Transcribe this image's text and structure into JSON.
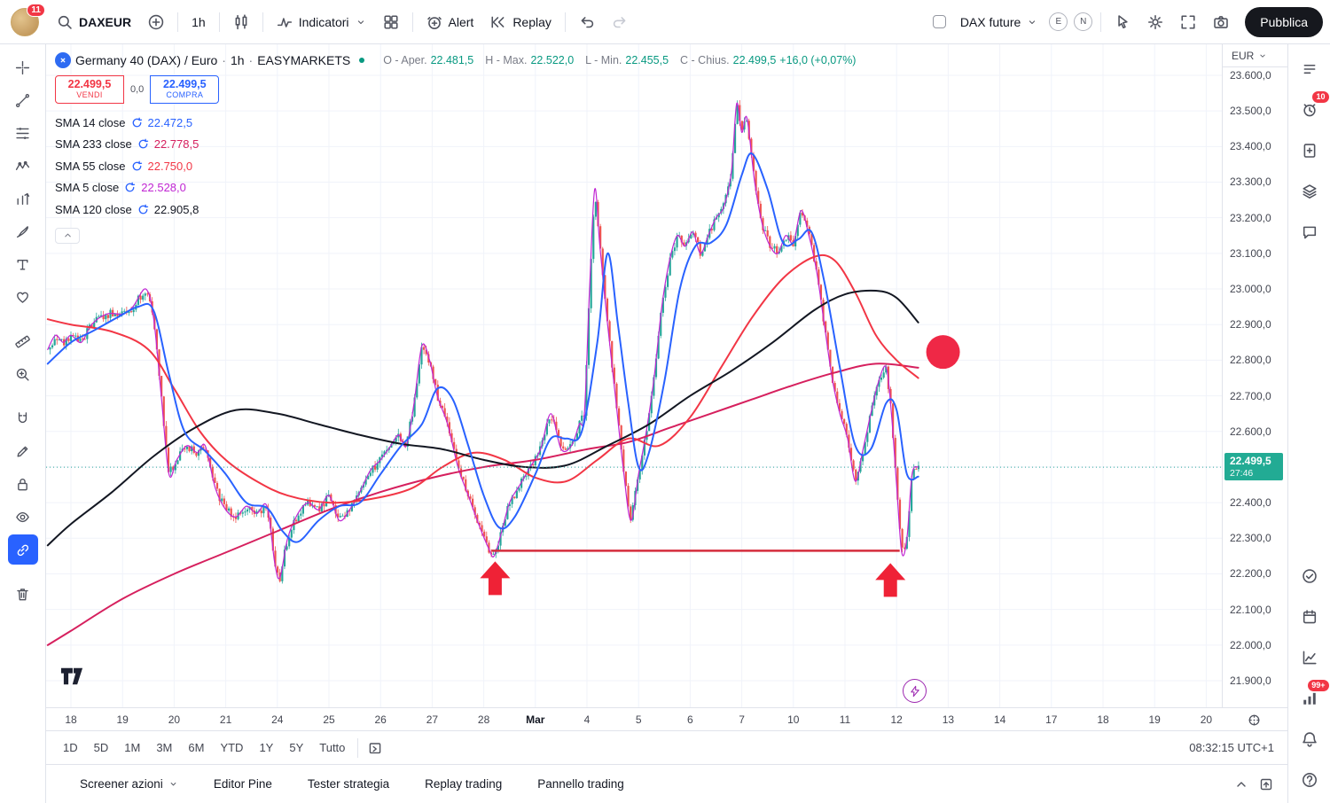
{
  "topbar": {
    "badge": "11",
    "symbol_search": "DAXEUR",
    "interval": "1h",
    "indicators_label": "Indicatori",
    "alert_label": "Alert",
    "replay_label": "Replay",
    "account_select": "DAX future",
    "badge_e": "E",
    "badge_n": "N",
    "publish_label": "Pubblica"
  },
  "legend": {
    "title": "Germany 40 (DAX) / Euro",
    "sep": "·",
    "interval": "1h",
    "exchange": "EASYMARKETS",
    "ohlc": [
      {
        "label": "O - Aper.",
        "value": "22.481,5"
      },
      {
        "label": "H - Max.",
        "value": "22.522,0"
      },
      {
        "label": "L - Min.",
        "value": "22.455,5"
      },
      {
        "label": "C - Chius.",
        "value": "22.499,5"
      }
    ],
    "change": "+16,0 (+0,07%)",
    "sell_price": "22.499,5",
    "sell_label": "VENDI",
    "spread": "0,0",
    "buy_price": "22.499,5",
    "buy_label": "COMPRA",
    "indicators": [
      {
        "name": "SMA 14 close",
        "value": "22.472,5",
        "color": "#2962ff"
      },
      {
        "name": "SMA 233 close",
        "value": "22.778,5",
        "color": "#d6205e"
      },
      {
        "name": "SMA 55 close",
        "value": "22.750,0",
        "color": "#f23645"
      },
      {
        "name": "SMA 5 close",
        "value": "22.528,0",
        "color": "#c026d3"
      },
      {
        "name": "SMA 120 close",
        "value": "22.905,8",
        "color": "#131722"
      }
    ]
  },
  "left_toolbar": {
    "tools": [
      {
        "icon": "crosshair"
      },
      {
        "icon": "trend-line"
      },
      {
        "icon": "fib"
      },
      {
        "icon": "pattern"
      },
      {
        "icon": "forecast"
      },
      {
        "icon": "brush"
      },
      {
        "icon": "text"
      },
      {
        "icon": "emoji"
      },
      {
        "icon": "ruler",
        "gap": true
      },
      {
        "icon": "zoom"
      },
      {
        "icon": "magnet",
        "gap": true
      },
      {
        "icon": "edit"
      },
      {
        "icon": "lock"
      },
      {
        "icon": "eye"
      },
      {
        "icon": "link",
        "active": true
      },
      {
        "icon": "trash",
        "gap": true
      }
    ]
  },
  "right_toolbar": {
    "top": [
      {
        "icon": "watchlist"
      },
      {
        "icon": "alarm",
        "badge": "10"
      },
      {
        "icon": "doc-plus"
      },
      {
        "icon": "layers"
      },
      {
        "icon": "chat"
      }
    ],
    "bottom": [
      {
        "icon": "circle-check"
      },
      {
        "icon": "calendar"
      },
      {
        "icon": "chart-axes"
      },
      {
        "icon": "signal",
        "badge": "99+"
      },
      {
        "icon": "bell"
      },
      {
        "icon": "question"
      }
    ]
  },
  "price_axis": {
    "currency": "EUR",
    "labels": [
      "23.600,0",
      "23.500,0",
      "23.400,0",
      "23.300,0",
      "23.200,0",
      "23.100,0",
      "23.000,0",
      "22.900,0",
      "22.800,0",
      "22.700,0",
      "22.600,0",
      "22.500,0",
      "22.400,0",
      "22.300,0",
      "22.200,0",
      "22.100,0",
      "22.000,0",
      "21.900,0"
    ]
  },
  "time_axis": {
    "labels": [
      "18",
      "19",
      "20",
      "21",
      "24",
      "25",
      "26",
      "27",
      "28",
      "Mar",
      "4",
      "5",
      "6",
      "7",
      "10",
      "11",
      "12",
      "13",
      "14",
      "17",
      "18",
      "19",
      "20"
    ],
    "bold_label": "Mar"
  },
  "range_bar": {
    "ranges": [
      "1D",
      "5D",
      "1M",
      "3M",
      "6M",
      "YTD",
      "1Y",
      "5Y",
      "Tutto"
    ],
    "clock": "08:32:15 UTC+1"
  },
  "footer": {
    "tabs": [
      "Screener azioni",
      "Editor Pine",
      "Tester strategia",
      "Replay trading",
      "Pannello trading"
    ]
  },
  "chart_data": {
    "type": "candlestick",
    "symbol": "Germany 40 (DAX) / Euro",
    "interval": "1h",
    "up_color": "#26a69a",
    "down_color": "#ef5350",
    "grid_color": "#f0f3fa",
    "y_min": 21900,
    "y_max": 23600,
    "y_step": 100,
    "x_labels": [
      "18",
      "19",
      "20",
      "21",
      "24",
      "25",
      "26",
      "27",
      "28",
      "Mar",
      "4",
      "5",
      "6",
      "7",
      "10",
      "11",
      "12",
      "13",
      "14",
      "17",
      "18",
      "19",
      "20"
    ],
    "bold_x_label": "Mar",
    "last_price": 22499.5,
    "last_price_label": "22.499,5",
    "countdown": "27:46",
    "price_tag_color": "#22ab94",
    "price_path": [
      [
        -0.45,
        22830
      ],
      [
        -0.3,
        22870
      ],
      [
        -0.15,
        22850
      ],
      [
        0,
        22870
      ],
      [
        0.2,
        22850
      ],
      [
        0.4,
        22900
      ],
      [
        0.7,
        22930
      ],
      [
        1.0,
        22930
      ],
      [
        1.2,
        22950
      ],
      [
        1.45,
        23000
      ],
      [
        1.6,
        22920
      ],
      [
        1.75,
        22700
      ],
      [
        1.9,
        22480
      ],
      [
        2.05,
        22520
      ],
      [
        2.25,
        22560
      ],
      [
        2.45,
        22540
      ],
      [
        2.6,
        22560
      ],
      [
        2.8,
        22440
      ],
      [
        3.0,
        22380
      ],
      [
        3.2,
        22360
      ],
      [
        3.4,
        22390
      ],
      [
        3.6,
        22370
      ],
      [
        3.8,
        22390
      ],
      [
        3.95,
        22230
      ],
      [
        4.05,
        22190
      ],
      [
        4.2,
        22300
      ],
      [
        4.4,
        22370
      ],
      [
        4.6,
        22400
      ],
      [
        4.8,
        22380
      ],
      [
        5.0,
        22420
      ],
      [
        5.2,
        22350
      ],
      [
        5.4,
        22380
      ],
      [
        5.6,
        22430
      ],
      [
        5.8,
        22490
      ],
      [
        6.0,
        22520
      ],
      [
        6.2,
        22560
      ],
      [
        6.35,
        22590
      ],
      [
        6.5,
        22560
      ],
      [
        6.65,
        22680
      ],
      [
        6.8,
        22840
      ],
      [
        6.95,
        22800
      ],
      [
        7.1,
        22700
      ],
      [
        7.3,
        22620
      ],
      [
        7.5,
        22500
      ],
      [
        7.7,
        22420
      ],
      [
        7.9,
        22340
      ],
      [
        8.1,
        22270
      ],
      [
        8.2,
        22250
      ],
      [
        8.35,
        22320
      ],
      [
        8.5,
        22400
      ],
      [
        8.7,
        22450
      ],
      [
        8.9,
        22500
      ],
      [
        9.1,
        22550
      ],
      [
        9.3,
        22650
      ],
      [
        9.5,
        22550
      ],
      [
        9.7,
        22560
      ],
      [
        9.85,
        22620
      ],
      [
        9.95,
        22650
      ],
      [
        10.05,
        23000
      ],
      [
        10.15,
        23280
      ],
      [
        10.25,
        23120
      ],
      [
        10.4,
        22900
      ],
      [
        10.55,
        22700
      ],
      [
        10.7,
        22500
      ],
      [
        10.85,
        22350
      ],
      [
        11.0,
        22480
      ],
      [
        11.15,
        22600
      ],
      [
        11.3,
        22750
      ],
      [
        11.45,
        22950
      ],
      [
        11.6,
        23080
      ],
      [
        11.75,
        23150
      ],
      [
        11.9,
        23120
      ],
      [
        12.05,
        23160
      ],
      [
        12.2,
        23100
      ],
      [
        12.35,
        23150
      ],
      [
        12.5,
        23200
      ],
      [
        12.65,
        23230
      ],
      [
        12.8,
        23330
      ],
      [
        12.9,
        23520
      ],
      [
        13.0,
        23440
      ],
      [
        13.1,
        23480
      ],
      [
        13.25,
        23300
      ],
      [
        13.4,
        23180
      ],
      [
        13.55,
        23120
      ],
      [
        13.7,
        23100
      ],
      [
        13.85,
        23150
      ],
      [
        14.0,
        23130
      ],
      [
        14.15,
        23220
      ],
      [
        14.3,
        23150
      ],
      [
        14.45,
        23050
      ],
      [
        14.6,
        22900
      ],
      [
        14.75,
        22750
      ],
      [
        14.9,
        22650
      ],
      [
        15.05,
        22580
      ],
      [
        15.2,
        22460
      ],
      [
        15.35,
        22550
      ],
      [
        15.5,
        22650
      ],
      [
        15.65,
        22740
      ],
      [
        15.8,
        22780
      ],
      [
        15.9,
        22650
      ],
      [
        16.0,
        22450
      ],
      [
        16.1,
        22260
      ],
      [
        16.2,
        22300
      ],
      [
        16.3,
        22480
      ],
      [
        16.42,
        22500
      ]
    ],
    "ma_lines": [
      {
        "name": "SMA 5",
        "color": "#c026d3",
        "width": 1.2,
        "use_price_path": true,
        "points": []
      },
      {
        "name": "SMA 233",
        "color": "#d6205e",
        "width": 2,
        "points": [
          [
            -0.45,
            22000
          ],
          [
            0,
            22040
          ],
          [
            1,
            22130
          ],
          [
            2,
            22200
          ],
          [
            3,
            22260
          ],
          [
            4,
            22320
          ],
          [
            5,
            22380
          ],
          [
            6,
            22430
          ],
          [
            7,
            22470
          ],
          [
            8,
            22500
          ],
          [
            9,
            22520
          ],
          [
            10,
            22550
          ],
          [
            10.8,
            22570
          ],
          [
            11.6,
            22610
          ],
          [
            12.4,
            22650
          ],
          [
            13.2,
            22690
          ],
          [
            14,
            22730
          ],
          [
            14.8,
            22765
          ],
          [
            15.6,
            22790
          ],
          [
            16.42,
            22779
          ]
        ]
      },
      {
        "name": "SMA 55",
        "color": "#f23645",
        "width": 2,
        "points": [
          [
            -0.45,
            22915
          ],
          [
            0,
            22900
          ],
          [
            0.8,
            22880
          ],
          [
            1.5,
            22830
          ],
          [
            2,
            22720
          ],
          [
            2.5,
            22600
          ],
          [
            3,
            22520
          ],
          [
            3.6,
            22460
          ],
          [
            4.2,
            22420
          ],
          [
            5,
            22400
          ],
          [
            5.8,
            22410
          ],
          [
            6.6,
            22440
          ],
          [
            7.2,
            22500
          ],
          [
            7.8,
            22540
          ],
          [
            8.4,
            22520
          ],
          [
            9,
            22470
          ],
          [
            9.6,
            22460
          ],
          [
            10.2,
            22520
          ],
          [
            10.8,
            22580
          ],
          [
            11.4,
            22560
          ],
          [
            12,
            22640
          ],
          [
            12.6,
            22780
          ],
          [
            13.2,
            22920
          ],
          [
            13.8,
            23030
          ],
          [
            14.4,
            23090
          ],
          [
            14.8,
            23080
          ],
          [
            15.2,
            22990
          ],
          [
            15.6,
            22870
          ],
          [
            16,
            22800
          ],
          [
            16.42,
            22750
          ]
        ]
      },
      {
        "name": "SMA 120",
        "color": "#131722",
        "width": 2,
        "points": [
          [
            -0.45,
            22280
          ],
          [
            0,
            22340
          ],
          [
            0.8,
            22430
          ],
          [
            1.6,
            22530
          ],
          [
            2.4,
            22610
          ],
          [
            3.2,
            22660
          ],
          [
            4,
            22650
          ],
          [
            4.8,
            22620
          ],
          [
            5.6,
            22590
          ],
          [
            6.4,
            22565
          ],
          [
            7.2,
            22550
          ],
          [
            8,
            22520
          ],
          [
            8.8,
            22500
          ],
          [
            9.6,
            22505
          ],
          [
            10.4,
            22560
          ],
          [
            11.2,
            22620
          ],
          [
            12,
            22700
          ],
          [
            12.8,
            22770
          ],
          [
            13.6,
            22850
          ],
          [
            14.4,
            22940
          ],
          [
            15,
            22985
          ],
          [
            15.6,
            22995
          ],
          [
            16,
            22975
          ],
          [
            16.42,
            22906
          ]
        ]
      },
      {
        "name": "SMA 14",
        "color": "#2962ff",
        "width": 2,
        "points": [
          [
            -0.45,
            22790
          ],
          [
            0,
            22850
          ],
          [
            0.4,
            22880
          ],
          [
            0.9,
            22920
          ],
          [
            1.3,
            22950
          ],
          [
            1.6,
            22940
          ],
          [
            1.9,
            22760
          ],
          [
            2.2,
            22600
          ],
          [
            2.6,
            22545
          ],
          [
            3,
            22480
          ],
          [
            3.4,
            22400
          ],
          [
            3.8,
            22385
          ],
          [
            4.1,
            22320
          ],
          [
            4.4,
            22290
          ],
          [
            4.8,
            22350
          ],
          [
            5.2,
            22390
          ],
          [
            5.6,
            22400
          ],
          [
            6,
            22480
          ],
          [
            6.4,
            22560
          ],
          [
            6.8,
            22620
          ],
          [
            7.1,
            22720
          ],
          [
            7.4,
            22690
          ],
          [
            7.7,
            22560
          ],
          [
            8,
            22420
          ],
          [
            8.3,
            22330
          ],
          [
            8.6,
            22360
          ],
          [
            9,
            22480
          ],
          [
            9.3,
            22580
          ],
          [
            9.6,
            22580
          ],
          [
            9.9,
            22600
          ],
          [
            10.2,
            22850
          ],
          [
            10.4,
            23100
          ],
          [
            10.6,
            22900
          ],
          [
            10.8,
            22680
          ],
          [
            11,
            22500
          ],
          [
            11.2,
            22540
          ],
          [
            11.5,
            22740
          ],
          [
            11.8,
            23000
          ],
          [
            12.1,
            23120
          ],
          [
            12.4,
            23130
          ],
          [
            12.7,
            23180
          ],
          [
            13,
            23320
          ],
          [
            13.2,
            23380
          ],
          [
            13.5,
            23280
          ],
          [
            13.8,
            23130
          ],
          [
            14.1,
            23140
          ],
          [
            14.35,
            23160
          ],
          [
            14.6,
            23020
          ],
          [
            14.9,
            22780
          ],
          [
            15.2,
            22560
          ],
          [
            15.5,
            22550
          ],
          [
            15.8,
            22680
          ],
          [
            16,
            22660
          ],
          [
            16.2,
            22480
          ],
          [
            16.42,
            22473
          ]
        ]
      }
    ],
    "support_line": {
      "price": 22265,
      "from_day": 8.15,
      "to_day": 16.06,
      "color": "#d42c3c",
      "width": 2.5
    },
    "arrows": {
      "color": "#ef2236",
      "items": [
        {
          "day": 8.22,
          "price": 22235
        },
        {
          "day": 15.88,
          "price": 22230
        }
      ]
    },
    "highlight_circle": {
      "day": 16.9,
      "price": 22823,
      "radius_px": 19,
      "color": "#ef2846"
    }
  }
}
